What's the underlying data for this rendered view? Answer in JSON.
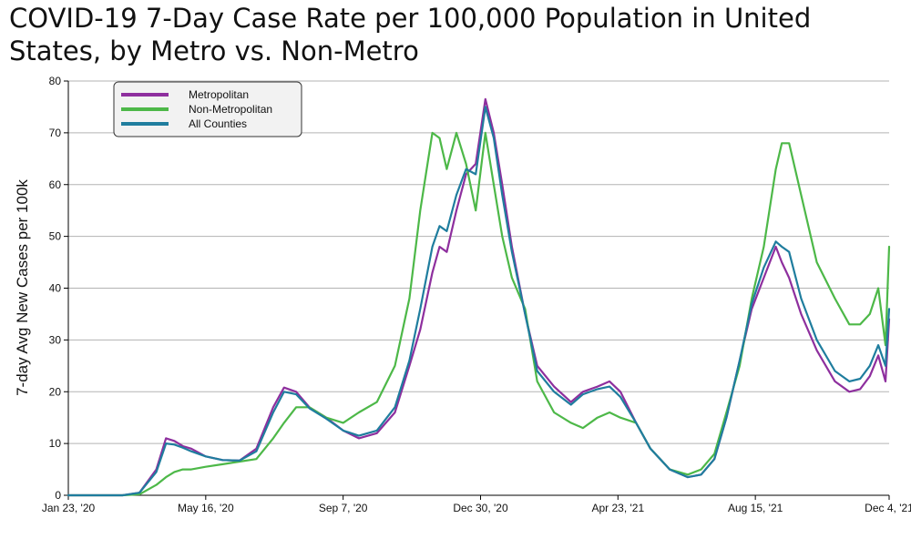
{
  "chart_data": {
    "type": "line",
    "title": "COVID-19 7-Day Case Rate per 100,000 Population in United States, by Metro vs. Non-Metro",
    "xlabel": "",
    "ylabel": "7-day Avg New Cases per 100k",
    "x_axis": {
      "start": "2020-01-23",
      "end": "2021-12-04",
      "tick_dates": [
        "2020-01-23",
        "2020-05-16",
        "2020-09-07",
        "2020-12-30",
        "2021-04-23",
        "2021-08-15",
        "2021-12-04"
      ],
      "tick_labels": [
        "Jan 23, '20",
        "May 16, '20",
        "Sep 7, '20",
        "Dec 30, '20",
        "Apr 23, '21",
        "Aug 15, '21",
        "Dec 4, '21"
      ]
    },
    "ylim": [
      0,
      80
    ],
    "yticks": [
      0,
      10,
      20,
      30,
      40,
      50,
      60,
      70,
      80
    ],
    "grid": true,
    "legend_position": "top-left",
    "x": [
      "2020-01-23",
      "2020-02-15",
      "2020-03-08",
      "2020-03-22",
      "2020-04-05",
      "2020-04-13",
      "2020-04-20",
      "2020-04-27",
      "2020-05-04",
      "2020-05-16",
      "2020-05-30",
      "2020-06-13",
      "2020-06-27",
      "2020-07-11",
      "2020-07-20",
      "2020-07-30",
      "2020-08-10",
      "2020-08-24",
      "2020-09-07",
      "2020-09-20",
      "2020-10-05",
      "2020-10-20",
      "2020-11-01",
      "2020-11-10",
      "2020-11-20",
      "2020-11-26",
      "2020-12-02",
      "2020-12-10",
      "2020-12-18",
      "2020-12-26",
      "2021-01-03",
      "2021-01-10",
      "2021-01-17",
      "2021-01-25",
      "2021-02-05",
      "2021-02-15",
      "2021-03-01",
      "2021-03-15",
      "2021-03-25",
      "2021-04-06",
      "2021-04-16",
      "2021-04-25",
      "2021-05-08",
      "2021-05-20",
      "2021-06-05",
      "2021-06-20",
      "2021-07-01",
      "2021-07-12",
      "2021-07-22",
      "2021-08-02",
      "2021-08-12",
      "2021-08-22",
      "2021-09-01",
      "2021-09-06",
      "2021-09-12",
      "2021-09-22",
      "2021-10-05",
      "2021-10-20",
      "2021-11-01",
      "2021-11-10",
      "2021-11-18",
      "2021-11-25",
      "2021-12-01",
      "2021-12-04"
    ],
    "series": [
      {
        "name": "Metropolitan",
        "color": "#8e2f9e",
        "values": [
          0,
          0,
          0,
          0.5,
          5,
          11,
          10.5,
          9.5,
          9,
          7.5,
          6.8,
          6.7,
          9,
          17,
          20.8,
          20,
          17,
          15,
          12.5,
          11,
          12,
          16,
          25,
          32,
          43,
          48,
          47,
          55,
          62,
          64,
          76.5,
          70,
          60,
          48,
          35,
          25,
          21,
          18,
          20,
          21,
          22,
          20,
          14,
          9,
          5,
          3.5,
          4,
          7,
          15,
          26,
          36,
          42,
          48,
          45,
          42,
          35,
          28,
          22,
          20,
          20.5,
          23,
          27,
          22,
          34
        ]
      },
      {
        "name": "Non-Metropolitan",
        "color": "#4db848",
        "values": [
          0,
          0,
          0,
          0.2,
          2,
          3.5,
          4.5,
          5,
          5,
          5.5,
          6,
          6.5,
          7,
          11,
          14,
          17,
          17,
          15,
          14,
          16,
          18,
          25,
          38,
          55,
          70,
          69,
          63,
          70,
          64,
          55,
          70,
          60,
          50,
          42,
          36,
          22,
          16,
          14,
          13,
          15,
          16,
          15,
          14,
          9,
          5,
          4,
          5,
          8,
          16,
          25,
          38,
          48,
          63,
          68,
          68,
          58,
          45,
          38,
          33,
          33,
          35,
          40,
          29,
          48
        ]
      },
      {
        "name": "All Counties",
        "color": "#1f7d9e",
        "values": [
          0,
          0,
          0,
          0.5,
          4.5,
          10,
          9.8,
          9.2,
          8.5,
          7.5,
          6.8,
          6.7,
          8.5,
          16,
          20,
          19.5,
          16.8,
          14.8,
          12.5,
          11.5,
          12.5,
          17,
          26,
          36,
          48,
          52,
          51,
          58,
          63,
          62,
          75,
          69,
          58,
          47,
          35,
          24,
          20,
          17.5,
          19.5,
          20.5,
          21,
          19,
          14,
          9,
          5,
          3.5,
          4,
          7,
          15,
          26,
          37,
          44,
          49,
          48,
          47,
          38,
          30,
          24,
          22,
          22.5,
          25,
          29,
          25,
          36
        ]
      }
    ]
  }
}
